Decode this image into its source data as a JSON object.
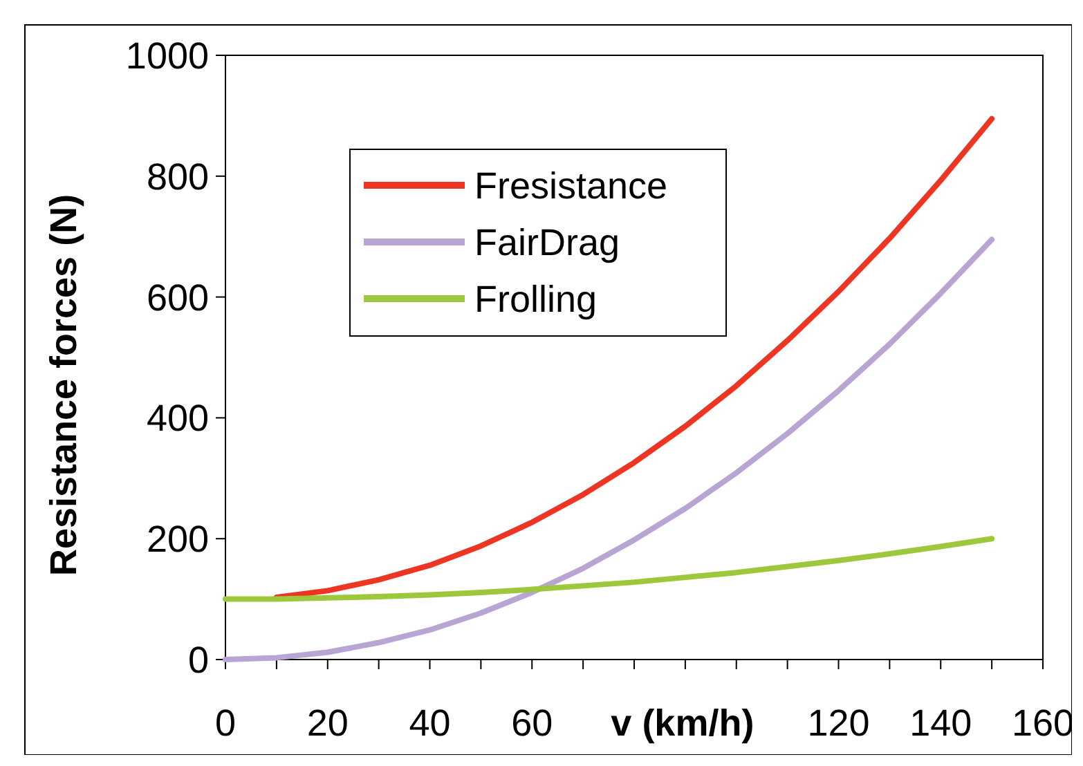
{
  "chart_data": {
    "type": "line",
    "xlabel": "v (km/h)",
    "ylabel": "Resistance forces (N)",
    "x": [
      0,
      10,
      20,
      30,
      40,
      50,
      60,
      70,
      80,
      90,
      100,
      110,
      120,
      130,
      140,
      150
    ],
    "series": [
      {
        "name": "Fresistance",
        "color": "#ee3524",
        "values": [
          null,
          103,
          114,
          132,
          156,
          188,
          227,
          273,
          326,
          386,
          453,
          528,
          609,
          697,
          793,
          895
        ]
      },
      {
        "name": "FairDrag",
        "color": "#b8a5d3",
        "values": [
          0,
          3,
          12,
          28,
          49,
          77,
          111,
          151,
          198,
          250,
          309,
          374,
          445,
          522,
          606,
          695
        ]
      },
      {
        "name": "Frolling",
        "color": "#9dc83b",
        "values": [
          100,
          100,
          102,
          104,
          107,
          111,
          116,
          122,
          128,
          136,
          144,
          154,
          164,
          175,
          187,
          200
        ]
      }
    ],
    "xlim": [
      0,
      160
    ],
    "ylim": [
      0,
      1000
    ],
    "xticks": [
      0,
      {
        "value": 10,
        "label": null
      },
      20,
      {
        "value": 30,
        "label": null
      },
      40,
      {
        "value": 50,
        "label": null
      },
      60,
      {
        "value": 70,
        "label": null
      },
      {
        "value": 80,
        "label": null
      },
      {
        "value": 90,
        "label": null
      },
      {
        "value": 100,
        "label": null
      },
      {
        "value": 110,
        "label": null
      },
      120,
      {
        "value": 130,
        "label": null
      },
      140,
      {
        "value": 150,
        "label": null
      },
      160
    ],
    "yticks": [
      0,
      200,
      400,
      600,
      800,
      1000
    ],
    "grid": false,
    "legend": "top left",
    "marker": "none",
    "line_style": "solid"
  }
}
